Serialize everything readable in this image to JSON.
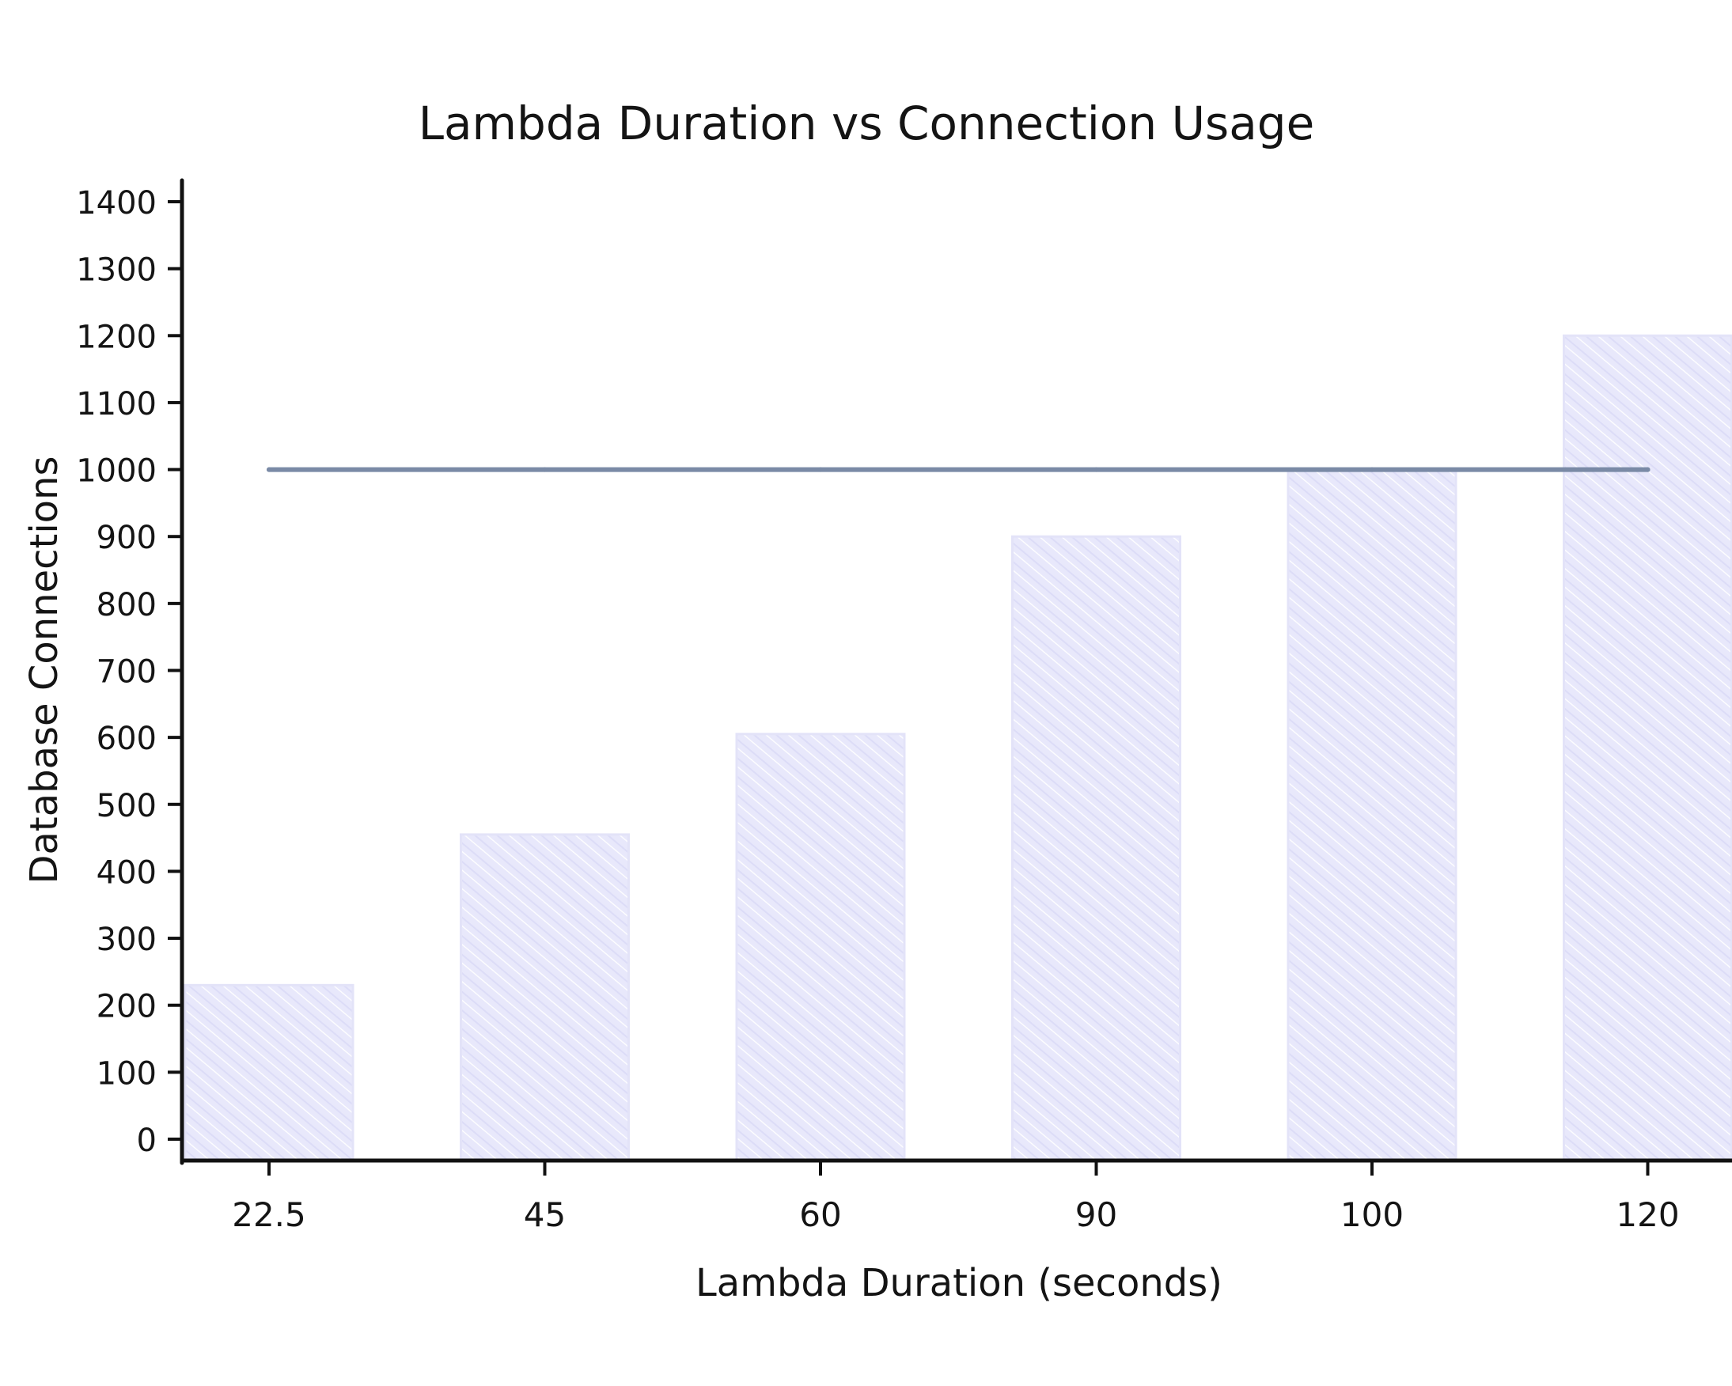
{
  "chart_data": {
    "type": "bar",
    "title": "Lambda Duration vs Connection Usage",
    "xlabel": "Lambda Duration (seconds)",
    "ylabel": "Database Connections",
    "categories": [
      "22.5",
      "45",
      "60",
      "90",
      "100",
      "120"
    ],
    "series": [
      {
        "type": "bar",
        "values": [
          230,
          455,
          605,
          900,
          1000,
          1200
        ]
      },
      {
        "type": "line",
        "values": [
          1000,
          1000,
          1000,
          1000,
          1000,
          1000
        ]
      }
    ],
    "ylim": [
      0,
      1400
    ],
    "yticks": [
      0,
      100,
      200,
      300,
      400,
      500,
      600,
      700,
      800,
      900,
      1000,
      1100,
      1200,
      1300,
      1400
    ],
    "grid": false,
    "colors": {
      "bar_fill": "#e6e6fa",
      "bar_hatch": "#d3d3f5",
      "line": "#7a8aa6",
      "axis": "#111111"
    }
  }
}
